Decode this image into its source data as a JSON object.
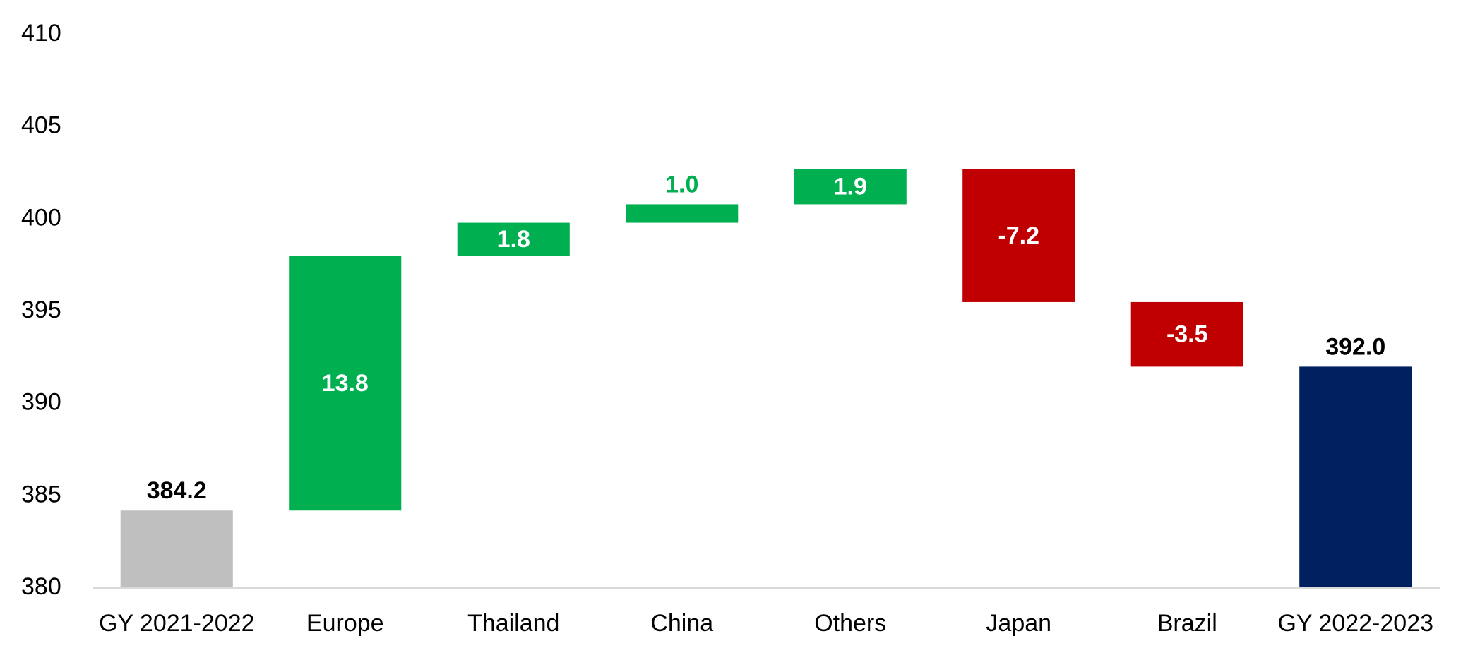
{
  "chart_data": {
    "type": "waterfall",
    "categories": [
      "GY 2021-2022",
      "Europe",
      "Thailand",
      "China",
      "Others",
      "Japan",
      "Brazil",
      "GY 2022-2023"
    ],
    "values": [
      384.2,
      13.8,
      1.8,
      1.0,
      1.9,
      -7.2,
      -3.5,
      392.0
    ],
    "value_labels": [
      "384.2",
      "13.8",
      "1.8",
      "1.0",
      "1.9",
      "-7.2",
      "-3.5",
      "392.0"
    ],
    "measure": [
      "absolute",
      "relative",
      "relative",
      "relative",
      "relative",
      "relative",
      "relative",
      "total"
    ],
    "colors": [
      "#bfbfbf",
      "#00b050",
      "#00b050",
      "#00b050",
      "#00b050",
      "#c00000",
      "#c00000",
      "#002060"
    ],
    "ylim": [
      380,
      410
    ],
    "yticks": [
      380,
      385,
      390,
      395,
      400,
      405,
      410
    ],
    "grid": false
  }
}
